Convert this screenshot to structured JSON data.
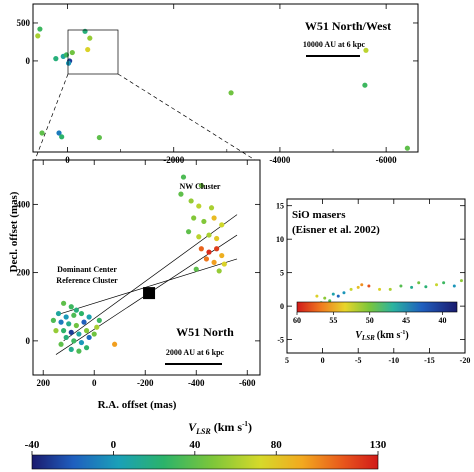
{
  "ylabel": "Decl. offset (mas)",
  "top_panel": {
    "title": "W51 North/West",
    "scalebar": "10000 AU at 6 kpc",
    "x_ticks": [
      "0",
      "-2000",
      "-4000",
      "-6000"
    ],
    "y_ticks": [
      "0",
      "500"
    ]
  },
  "main_panel": {
    "title": "W51 North",
    "scalebar": "2000 AU at 6 kpc",
    "xlabel": "R.A. offset (mas)",
    "label_nw": "NW Cluster",
    "label_center_1": "Dominant Center",
    "label_center_2": "Reference Cluster",
    "x_ticks": [
      "200",
      "0",
      "-200",
      "-400",
      "-600"
    ],
    "y_ticks": [
      "400",
      "200",
      "0"
    ]
  },
  "inset_panel": {
    "title_1": "SiO masers",
    "title_2": "(Eisner et al. 2002)",
    "x_ticks": [
      "5",
      "0",
      "-5",
      "-10",
      "-15",
      "-20"
    ],
    "y_ticks": [
      "15",
      "10",
      "5",
      "0",
      "-5"
    ],
    "colorbar_ticks": [
      "60",
      "55",
      "50",
      "45",
      "40"
    ],
    "colorbar_label": "V",
    "colorbar_label_sub": "LSR",
    "colorbar_label_unit": "(km s",
    "colorbar_label_sup": "-1",
    "colorbar_label_end": ")"
  },
  "bottom_colorbar": {
    "label": "V",
    "label_sub": "LSR",
    "label_unit": "(km s",
    "label_sup": "-1",
    "label_end": ")",
    "ticks": [
      "-40",
      "0",
      "40",
      "80",
      "130"
    ]
  },
  "chart_data": [
    {
      "type": "scatter",
      "panel": "top",
      "x_axis": "R.A. offset (mas)",
      "ylabel": "Decl. offset (mas)",
      "xlim": [
        650,
        -6600
      ],
      "ylim": [
        -1200,
        750
      ],
      "grid": false,
      "points": [
        {
          "x": 520,
          "y": 420,
          "v": 30
        },
        {
          "x": 560,
          "y": 330,
          "v": 60
        },
        {
          "x": 480,
          "y": -950,
          "v": 40
        },
        {
          "x": 220,
          "y": 30,
          "v": 20
        },
        {
          "x": 160,
          "y": -950,
          "v": -10
        },
        {
          "x": 110,
          "y": -1000,
          "v": 25
        },
        {
          "x": 80,
          "y": 60,
          "v": 10
        },
        {
          "x": 20,
          "y": 80,
          "v": 30
        },
        {
          "x": -40,
          "y": 0,
          "v": -30
        },
        {
          "x": -20,
          "y": -30,
          "v": 0
        },
        {
          "x": -90,
          "y": 110,
          "v": 45
        },
        {
          "x": -330,
          "y": 390,
          "v": 20
        },
        {
          "x": -380,
          "y": 150,
          "v": 75
        },
        {
          "x": -420,
          "y": 300,
          "v": 55
        },
        {
          "x": -600,
          "y": -1010,
          "v": 40
        },
        {
          "x": -3080,
          "y": -420,
          "v": 45
        },
        {
          "x": -5600,
          "y": -320,
          "v": 30
        },
        {
          "x": -5620,
          "y": 140,
          "v": 65
        },
        {
          "x": -6400,
          "y": -1150,
          "v": 40
        }
      ]
    },
    {
      "type": "scatter",
      "panel": "W51 North",
      "xlabel": "R.A. offset (mas)",
      "ylabel": "Decl. offset (mas)",
      "xlim": [
        240,
        -650
      ],
      "ylim": [
        -100,
        530
      ],
      "grid": false,
      "reference_marker": {
        "x": -215,
        "y": 140
      },
      "points": [
        {
          "x": -350,
          "y": 480,
          "v": 35
        },
        {
          "x": -420,
          "y": 455,
          "v": 45
        },
        {
          "x": -340,
          "y": 430,
          "v": 40
        },
        {
          "x": -380,
          "y": 410,
          "v": 55
        },
        {
          "x": -410,
          "y": 395,
          "v": 65
        },
        {
          "x": -460,
          "y": 390,
          "v": 60
        },
        {
          "x": -390,
          "y": 360,
          "v": 50
        },
        {
          "x": -430,
          "y": 350,
          "v": 50
        },
        {
          "x": -470,
          "y": 360,
          "v": 85
        },
        {
          "x": -500,
          "y": 340,
          "v": 70
        },
        {
          "x": -370,
          "y": 320,
          "v": 40
        },
        {
          "x": -410,
          "y": 305,
          "v": 65
        },
        {
          "x": -450,
          "y": 310,
          "v": 60
        },
        {
          "x": -480,
          "y": 300,
          "v": 80
        },
        {
          "x": -420,
          "y": 270,
          "v": 110
        },
        {
          "x": -450,
          "y": 260,
          "v": 125
        },
        {
          "x": -480,
          "y": 270,
          "v": 120
        },
        {
          "x": -500,
          "y": 250,
          "v": 90
        },
        {
          "x": -440,
          "y": 240,
          "v": 105
        },
        {
          "x": -470,
          "y": 230,
          "v": 95
        },
        {
          "x": -510,
          "y": 225,
          "v": 75
        },
        {
          "x": -400,
          "y": 210,
          "v": 40
        },
        {
          "x": -490,
          "y": 205,
          "v": 55
        },
        {
          "x": 120,
          "y": 110,
          "v": 40
        },
        {
          "x": 90,
          "y": 100,
          "v": 30
        },
        {
          "x": 70,
          "y": 90,
          "v": 20
        },
        {
          "x": 140,
          "y": 80,
          "v": 10
        },
        {
          "x": 110,
          "y": 70,
          "v": 0
        },
        {
          "x": 80,
          "y": 75,
          "v": 35
        },
        {
          "x": 50,
          "y": 80,
          "v": 25
        },
        {
          "x": 130,
          "y": 55,
          "v": -10
        },
        {
          "x": 100,
          "y": 50,
          "v": 15
        },
        {
          "x": 70,
          "y": 45,
          "v": 45
        },
        {
          "x": 40,
          "y": 55,
          "v": -20
        },
        {
          "x": 20,
          "y": 70,
          "v": 5
        },
        {
          "x": 120,
          "y": 30,
          "v": 25
        },
        {
          "x": 90,
          "y": 25,
          "v": -30
        },
        {
          "x": 60,
          "y": 20,
          "v": 10
        },
        {
          "x": 30,
          "y": 30,
          "v": 50
        },
        {
          "x": 110,
          "y": 10,
          "v": 20
        },
        {
          "x": 80,
          "y": 0,
          "v": 30
        },
        {
          "x": 50,
          "y": -5,
          "v": 0
        },
        {
          "x": 20,
          "y": 10,
          "v": -15
        },
        {
          "x": 130,
          "y": -10,
          "v": 40
        },
        {
          "x": 90,
          "y": -25,
          "v": 15
        },
        {
          "x": 60,
          "y": -30,
          "v": 35
        },
        {
          "x": 30,
          "y": -20,
          "v": 25
        },
        {
          "x": -10,
          "y": 40,
          "v": 60
        },
        {
          "x": 0,
          "y": 20,
          "v": 45
        },
        {
          "x": -20,
          "y": 60,
          "v": 30
        },
        {
          "x": -80,
          "y": -10,
          "v": 95
        },
        {
          "x": 150,
          "y": 30,
          "v": 55
        },
        {
          "x": 160,
          "y": 60,
          "v": 35
        }
      ]
    },
    {
      "type": "scatter",
      "panel": "SiO masers",
      "xlim": [
        5,
        -20
      ],
      "ylim": [
        -7,
        16
      ],
      "grid": false,
      "points": [
        {
          "x": 0.5,
          "y": -0.5,
          "v": 56
        },
        {
          "x": 0.2,
          "y": 0.5,
          "v": 50
        },
        {
          "x": -0.3,
          "y": 1.2,
          "v": 48
        },
        {
          "x": -0.5,
          "y": 0.2,
          "v": 52
        },
        {
          "x": 0.8,
          "y": 1.5,
          "v": 45
        },
        {
          "x": -1.0,
          "y": 0.8,
          "v": 50
        },
        {
          "x": -1.5,
          "y": 1.8,
          "v": 54
        },
        {
          "x": -2.2,
          "y": 1.5,
          "v": 57
        },
        {
          "x": -3.0,
          "y": 2.0,
          "v": 55
        },
        {
          "x": -4.0,
          "y": 2.5,
          "v": 46
        },
        {
          "x": -5.0,
          "y": 2.8,
          "v": 44
        },
        {
          "x": -5.5,
          "y": 3.2,
          "v": 42
        },
        {
          "x": -6.5,
          "y": 3.0,
          "v": 40
        },
        {
          "x": -8.0,
          "y": 2.5,
          "v": 45
        },
        {
          "x": -9.5,
          "y": 2.5,
          "v": 47
        },
        {
          "x": -11.0,
          "y": 3.0,
          "v": 50
        },
        {
          "x": -12.5,
          "y": 2.8,
          "v": 53
        },
        {
          "x": -13.5,
          "y": 3.5,
          "v": 49
        },
        {
          "x": -14.5,
          "y": 2.9,
          "v": 52
        },
        {
          "x": -16.0,
          "y": 3.2,
          "v": 46
        },
        {
          "x": -17.0,
          "y": 3.5,
          "v": 51
        },
        {
          "x": -18.5,
          "y": 3.0,
          "v": 55
        },
        {
          "x": -19.5,
          "y": 3.8,
          "v": 48
        }
      ]
    }
  ]
}
